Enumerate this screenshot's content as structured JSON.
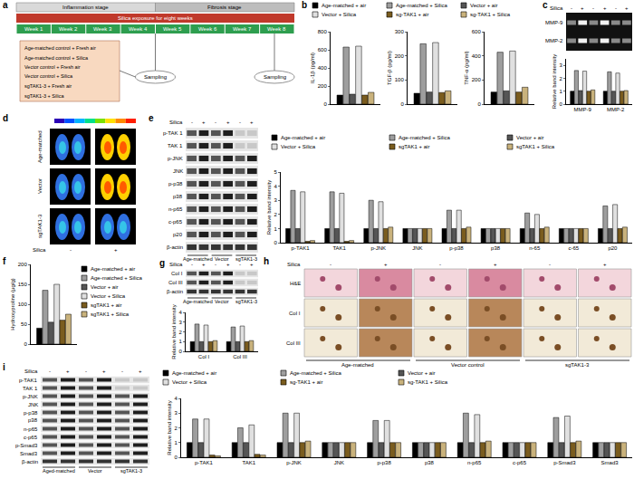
{
  "chart_data": [
    {
      "type": "bar",
      "y_label": "IL-1β (pg/ml)",
      "categories": [
        null
      ],
      "ylim": [
        0,
        800
      ],
      "yticks": [
        0,
        200,
        400,
        600,
        800
      ],
      "legend": "top",
      "series": [
        {
          "name": "Age-matched + air",
          "color": "#000000",
          "values": [
            100
          ]
        },
        {
          "name": "Age-matched + Silica",
          "color": "#9e9e9e",
          "values": [
            630
          ]
        },
        {
          "name": "Vector + air",
          "color": "#555555",
          "values": [
            110
          ]
        },
        {
          "name": "Vector + Silica",
          "color": "#e0e0e0",
          "values": [
            640
          ]
        },
        {
          "name": "sg-TAK1 + air",
          "color": "#7a5c1e",
          "values": [
            100
          ]
        },
        {
          "name": "sg-TAK1 + Silica",
          "color": "#c9b27c",
          "values": [
            130
          ]
        }
      ]
    },
    {
      "type": "bar",
      "y_label": "TGF-β (pg/ml)",
      "categories": [
        null
      ],
      "ylim": [
        0,
        300
      ],
      "yticks": [
        0,
        100,
        200,
        300
      ],
      "series": [
        {
          "name": "Age-matched + air",
          "color": "#000000",
          "values": [
            45
          ]
        },
        {
          "name": "Age-matched + Silica",
          "color": "#9e9e9e",
          "values": [
            250
          ]
        },
        {
          "name": "Vector + air",
          "color": "#555555",
          "values": [
            50
          ]
        },
        {
          "name": "Vector + Silica",
          "color": "#e0e0e0",
          "values": [
            255
          ]
        },
        {
          "name": "sg-TAK1 + air",
          "color": "#7a5c1e",
          "values": [
            48
          ]
        },
        {
          "name": "sg-TAK1 + Silica",
          "color": "#c9b27c",
          "values": [
            55
          ]
        }
      ]
    },
    {
      "type": "bar",
      "y_label": "TNF-α (pg/ml)",
      "categories": [
        null
      ],
      "ylim": [
        0,
        600
      ],
      "yticks": [
        0,
        200,
        400,
        600
      ],
      "series": [
        {
          "name": "Age-matched + air",
          "color": "#000000",
          "values": [
            100
          ]
        },
        {
          "name": "Age-matched + Silica",
          "color": "#9e9e9e",
          "values": [
            430
          ]
        },
        {
          "name": "Vector + air",
          "color": "#555555",
          "values": [
            110
          ]
        },
        {
          "name": "Vector + Silica",
          "color": "#e0e0e0",
          "values": [
            440
          ]
        },
        {
          "name": "sg-TAK1 + air",
          "color": "#7a5c1e",
          "values": [
            100
          ]
        },
        {
          "name": "sg-TAK1 + Silica",
          "color": "#c9b27c",
          "values": [
            140
          ]
        }
      ]
    },
    {
      "type": "bar",
      "y_label": "Relative band intensity",
      "categories": [
        "MMP-9",
        "MMP-2"
      ],
      "ylim": [
        0,
        3.5
      ],
      "yticks": [
        0,
        1,
        2,
        3
      ],
      "series": [
        {
          "name": "Age-matched + air",
          "color": "#000000",
          "values": [
            1,
            1
          ]
        },
        {
          "name": "Age-matched + Silica",
          "color": "#9e9e9e",
          "values": [
            2.6,
            2.5
          ]
        },
        {
          "name": "Vector + air",
          "color": "#555555",
          "values": [
            1.05,
            1
          ]
        },
        {
          "name": "Vector + Silica",
          "color": "#e0e0e0",
          "values": [
            2.55,
            2.4
          ]
        },
        {
          "name": "sg-TAK1 + air",
          "color": "#7a5c1e",
          "values": [
            1,
            1
          ]
        },
        {
          "name": "sg-TAK1 + Silica",
          "color": "#c9b27c",
          "values": [
            1.1,
            1.05
          ]
        }
      ]
    },
    {
      "type": "bar",
      "y_label": "Relative band intensity",
      "categories": [
        "p-TAK1",
        "TAK1",
        "p-JNK",
        "JNK",
        "p-p38",
        "p38",
        "n-65",
        "c-65",
        "p20"
      ],
      "ylim": [
        0,
        5
      ],
      "yticks": [
        0,
        1,
        2,
        3,
        4,
        5
      ],
      "legend": "top",
      "series": [
        {
          "name": "Age-matched + air",
          "color": "#000000",
          "values": [
            1,
            1,
            1,
            1,
            1,
            1,
            1,
            1,
            1
          ]
        },
        {
          "name": "Age-matched + Silica",
          "color": "#9e9e9e",
          "values": [
            3.7,
            3.6,
            3.0,
            1,
            2.3,
            1,
            2.1,
            1,
            2.6
          ]
        },
        {
          "name": "Vector + air",
          "color": "#555555",
          "values": [
            1,
            1,
            1,
            1,
            1,
            1,
            1,
            1,
            1
          ]
        },
        {
          "name": "Vector + Silica",
          "color": "#e0e0e0",
          "values": [
            3.6,
            3.5,
            2.9,
            1,
            2.3,
            1,
            2.0,
            1,
            2.7
          ]
        },
        {
          "name": "sgTAK1 + air",
          "color": "#7a5c1e",
          "values": [
            0.1,
            0.1,
            1,
            1,
            1,
            1,
            1,
            1,
            1
          ]
        },
        {
          "name": "sgTAK1 + Silica",
          "color": "#c9b27c",
          "values": [
            0.15,
            0.15,
            1.1,
            1,
            1.1,
            1,
            1.1,
            1,
            1.1
          ]
        }
      ]
    },
    {
      "type": "bar",
      "y_label": "Hydroxyproline (μg/g)",
      "categories": [
        null
      ],
      "ylim": [
        0,
        200
      ],
      "yticks": [
        0,
        50,
        100,
        150,
        200
      ],
      "legend": "right",
      "series": [
        {
          "name": "Age-matched + air",
          "color": "#000000",
          "values": [
            40
          ]
        },
        {
          "name": "Age-matched + Silica",
          "color": "#9e9e9e",
          "values": [
            135
          ]
        },
        {
          "name": "Vector + air",
          "color": "#555555",
          "values": [
            55
          ]
        },
        {
          "name": "Vector + Silica",
          "color": "#e0e0e0",
          "values": [
            150
          ]
        },
        {
          "name": "sgTAK1 + air",
          "color": "#7a5c1e",
          "values": [
            60
          ]
        },
        {
          "name": "sgTAK1 + Silica",
          "color": "#c9b27c",
          "values": [
            75
          ]
        }
      ]
    },
    {
      "type": "bar",
      "y_label": "Relative band intensity",
      "categories": [
        "Col I",
        "Col III"
      ],
      "ylim": [
        0,
        4
      ],
      "yticks": [
        0,
        1,
        2,
        3,
        4
      ],
      "series": [
        {
          "name": "Age-matched + air",
          "color": "#000000",
          "values": [
            1,
            1
          ]
        },
        {
          "name": "Age-matched + Silica",
          "color": "#9e9e9e",
          "values": [
            2.8,
            2.5
          ]
        },
        {
          "name": "Vector + air",
          "color": "#555555",
          "values": [
            1,
            1
          ]
        },
        {
          "name": "Vector + Silica",
          "color": "#e0e0e0",
          "values": [
            2.7,
            2.6
          ]
        },
        {
          "name": "sgTAK1 + air",
          "color": "#7a5c1e",
          "values": [
            1,
            1
          ]
        },
        {
          "name": "sgTAK1 + Silica",
          "color": "#c9b27c",
          "values": [
            1.1,
            1.1
          ]
        }
      ]
    },
    {
      "type": "bar",
      "y_label": "Relative band intensity",
      "categories": [
        "p-TAK1",
        "TAK1",
        "p-JNK",
        "JNK",
        "p-p38",
        "p38",
        "n-p65",
        "c-p65",
        "p-Smad3",
        "Smad3"
      ],
      "ylim": [
        0,
        4
      ],
      "yticks": [
        0,
        1,
        2,
        3,
        4
      ],
      "legend": "top",
      "series": [
        {
          "name": "Age-matched + air",
          "color": "#000000",
          "values": [
            1,
            1,
            1,
            1,
            1,
            1,
            1,
            1,
            1,
            1
          ]
        },
        {
          "name": "Age-matched + Silica",
          "color": "#9e9e9e",
          "values": [
            2.6,
            2.0,
            3.0,
            1,
            2.5,
            1,
            3.0,
            1,
            2.7,
            1
          ]
        },
        {
          "name": "Vector + air",
          "color": "#555555",
          "values": [
            1,
            1,
            1,
            1,
            1,
            1,
            1,
            1,
            1,
            1
          ]
        },
        {
          "name": "Vector + Silica",
          "color": "#e0e0e0",
          "values": [
            2.6,
            2.2,
            3.0,
            1,
            2.5,
            1,
            2.9,
            1,
            2.8,
            1
          ]
        },
        {
          "name": "sg-TAK1 + air",
          "color": "#7a5c1e",
          "values": [
            0.15,
            0.2,
            1,
            1,
            1,
            1,
            1,
            1,
            1,
            1
          ]
        },
        {
          "name": "sg-TAK1 + Silica",
          "color": "#c9b27c",
          "values": [
            0.1,
            0.15,
            1.1,
            1,
            1,
            1,
            1.1,
            1,
            1.1,
            1
          ]
        }
      ]
    }
  ],
  "figure": {
    "panel_labels": [
      "a",
      "b",
      "c",
      "d",
      "e",
      "f",
      "g",
      "h",
      "i"
    ],
    "silica": "Silica",
    "signs": [
      "-",
      "+",
      "-",
      "+",
      "-",
      "+"
    ],
    "timeline": {
      "stages": [
        "Inflammation stage",
        "Fibrosis stage"
      ],
      "exposure": "Silica exposure for eight weeks",
      "weeks": [
        "Week 1",
        "Week 2",
        "Week 3",
        "Week 4",
        "Week 5",
        "Week 6",
        "Week 7",
        "Week 8"
      ],
      "groups": [
        "Age-matched control + Fresh air",
        "Age-matched control + Silica",
        "Vector control + Fresh air",
        "Vector control + Silica",
        "sgTAK1-3 + Fresh air",
        "sgTAK1-3 + Silica"
      ],
      "sampling": "Sampling"
    },
    "gel_c": {
      "bands": [
        "MMP-9",
        "MMP-2"
      ]
    },
    "imaging_d": {
      "rows": [
        "Age-matched",
        "Vector",
        "sgTAK1-3"
      ]
    },
    "blot_e": {
      "bands": [
        "p-TAK 1",
        "TAK 1",
        "p-JNK",
        "JNK",
        "p-p38",
        "p38",
        "n-p65",
        "c-p65",
        "p20",
        "β-actin"
      ],
      "groups": [
        "Age-matched",
        "Vector",
        "sgTAK1-3"
      ]
    },
    "blot_g": {
      "bands": [
        "Col I",
        "Col III",
        "β-actin"
      ],
      "groups": [
        "Age-matched",
        "Vector",
        "sgTAK1-3"
      ]
    },
    "histology_h": {
      "rows": [
        "H&E",
        "Col I",
        "Col III"
      ],
      "groups": [
        "Age-matched",
        "Vector control",
        "sgTAK1-3"
      ]
    },
    "blot_i": {
      "bands": [
        "p-TAK1",
        "TAK 1",
        "p-JNK",
        "JNK",
        "p-p38",
        "p38",
        "n-p65",
        "c-p65",
        "p-Smad3",
        "Smad3",
        "β-actin"
      ],
      "groups": [
        "Aged-matched",
        "Vector",
        "sgTAK1-3"
      ]
    }
  }
}
